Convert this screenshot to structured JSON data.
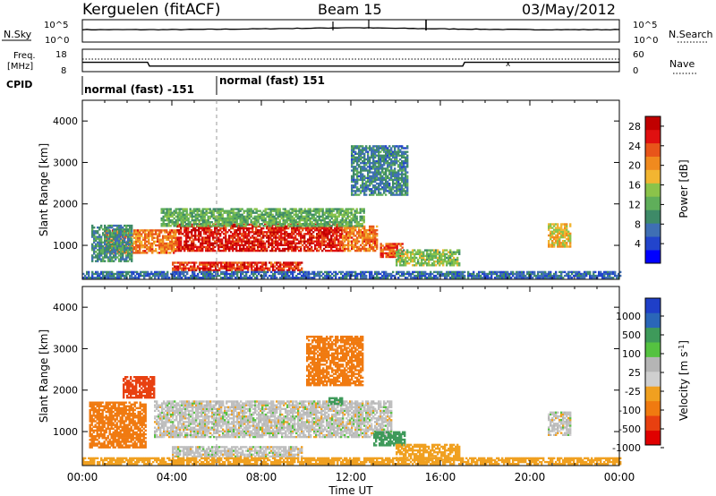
{
  "header": {
    "station": "Kerguelen (fitACF)",
    "beam": "Beam 15",
    "date": "03/May/2012"
  },
  "strip_labels": {
    "nsky": "N.Sky",
    "nsky_ticks": [
      "10^5",
      "10^0"
    ],
    "nsearch": "N.Search",
    "nsearch_ticks": [
      "10^5",
      "10^0"
    ],
    "freq_line1": "Freq.",
    "freq_line2": "[MHz]",
    "freq_ticks": [
      "18",
      "8"
    ],
    "nave": "Nave",
    "nave_ticks": [
      "60",
      "0"
    ],
    "cpid": "CPID",
    "cpid_segments": [
      "normal (fast) -151",
      "normal (fast) 151"
    ]
  },
  "colors": {
    "power_scale": [
      "#0000ff",
      "#2244cc",
      "#3f6fb4",
      "#3e8a68",
      "#5fae5a",
      "#8bc34a",
      "#f2b531",
      "#f08a1e",
      "#e8551a",
      "#e01010",
      "#c00000"
    ],
    "velocity_scale": [
      "#1f3fc8",
      "#2a66b8",
      "#3e9a5a",
      "#55c240",
      "#b5b5b5",
      "#cfcfcf",
      "#f0a020",
      "#f07a10",
      "#e84010",
      "#e00000"
    ],
    "ground_scatter": "#bfbfbf"
  },
  "chart_data": [
    {
      "type": "line",
      "panel": "noise",
      "x": [
        "00:00",
        "04:00",
        "08:00",
        "12:00",
        "16:00",
        "20:00",
        "00:00"
      ],
      "series": [
        {
          "name": "N.Sky",
          "values": [
            2.7,
            2.7,
            2.9,
            3.2,
            2.9,
            2.7,
            2.7
          ]
        }
      ]
    },
    {
      "type": "line",
      "panel": "frequency",
      "x": [
        "00:00",
        "02:55",
        "03:00",
        "17:00",
        "17:05",
        "24:00"
      ],
      "series": [
        {
          "name": "Freq.",
          "values": [
            12.0,
            12.0,
            10.0,
            10.0,
            12.0,
            12.0
          ]
        }
      ]
    },
    {
      "type": "heatmap",
      "panel": "power",
      "title": "",
      "xlabel": "Time UT",
      "ylabel": "Slant Range [km]",
      "x_ticks": [
        "00:00",
        "04:00",
        "08:00",
        "12:00",
        "16:00",
        "20:00",
        "00:00"
      ],
      "y_ticks": [
        "1000",
        "2000",
        "3000",
        "4000"
      ],
      "xlim_hours": [
        0,
        24
      ],
      "ylim": [
        180,
        4500
      ],
      "colorbar_label": "Power [dB]",
      "colorbar_ticks": [
        "4",
        "8",
        "12",
        "16",
        "20",
        "24",
        "28"
      ],
      "colorbar_range": [
        0,
        30
      ],
      "regions": [
        {
          "t0": 4.2,
          "t1": 11.6,
          "r0": 850,
          "r1": 1500,
          "value": 27
        },
        {
          "t0": 1.0,
          "t1": 4.2,
          "r0": 800,
          "r1": 1350,
          "value": 22
        },
        {
          "t0": 11.6,
          "t1": 13.2,
          "r0": 850,
          "r1": 1450,
          "value": 22
        },
        {
          "t0": 4.0,
          "t1": 9.8,
          "r0": 380,
          "r1": 600,
          "value": 26
        },
        {
          "t0": 3.5,
          "t1": 12.6,
          "r0": 1450,
          "r1": 1900,
          "value": 12
        },
        {
          "t0": 0.4,
          "t1": 2.2,
          "r0": 600,
          "r1": 1500,
          "value": 9
        },
        {
          "t0": 13.3,
          "t1": 14.3,
          "r0": 700,
          "r1": 1050,
          "value": 24
        },
        {
          "t0": 14.0,
          "t1": 16.8,
          "r0": 500,
          "r1": 900,
          "value": 14
        },
        {
          "t0": 20.8,
          "t1": 21.8,
          "r0": 950,
          "r1": 1500,
          "value": 18
        },
        {
          "t0": 12.0,
          "t1": 14.5,
          "r0": 2200,
          "r1": 3400,
          "value": 8
        },
        {
          "t0": 0.0,
          "t1": 24.0,
          "r0": 200,
          "r1": 380,
          "value": 6
        }
      ]
    },
    {
      "type": "heatmap",
      "panel": "velocity",
      "title": "",
      "xlabel": "Time UT",
      "ylabel": "Slant Range [km]",
      "x_ticks": [
        "00:00",
        "04:00",
        "08:00",
        "12:00",
        "16:00",
        "20:00",
        "00:00"
      ],
      "y_ticks": [
        "1000",
        "2000",
        "3000",
        "4000"
      ],
      "xlim_hours": [
        0,
        24
      ],
      "ylim": [
        180,
        4500
      ],
      "colorbar_label": "Velocity [m s^-1]",
      "colorbar_ticks": [
        "1000",
        "500",
        "100",
        "25",
        "-25",
        "-100",
        "-500",
        "-1000"
      ],
      "regions": [
        {
          "t0": 3.2,
          "t1": 13.8,
          "r0": 850,
          "r1": 1750,
          "value": 0
        },
        {
          "t0": 4.0,
          "t1": 9.8,
          "r0": 380,
          "r1": 620,
          "value": 0
        },
        {
          "t0": 0.3,
          "t1": 2.8,
          "r0": 600,
          "r1": 1700,
          "value": -200
        },
        {
          "t0": 1.8,
          "t1": 3.2,
          "r0": 1800,
          "r1": 2300,
          "value": -600
        },
        {
          "t0": 13.0,
          "t1": 14.4,
          "r0": 650,
          "r1": 1000,
          "value": 150
        },
        {
          "t0": 11.0,
          "t1": 11.6,
          "r0": 1650,
          "r1": 1800,
          "value": 150
        },
        {
          "t0": 14.0,
          "t1": 16.8,
          "r0": 300,
          "r1": 700,
          "value": -60
        },
        {
          "t0": 20.8,
          "t1": 21.8,
          "r0": 900,
          "r1": 1450,
          "value": 0
        },
        {
          "t0": 10.0,
          "t1": 12.5,
          "r0": 2100,
          "r1": 3300,
          "value": -150
        },
        {
          "t0": 0.0,
          "t1": 24.0,
          "r0": 200,
          "r1": 380,
          "value": -60
        }
      ]
    }
  ]
}
